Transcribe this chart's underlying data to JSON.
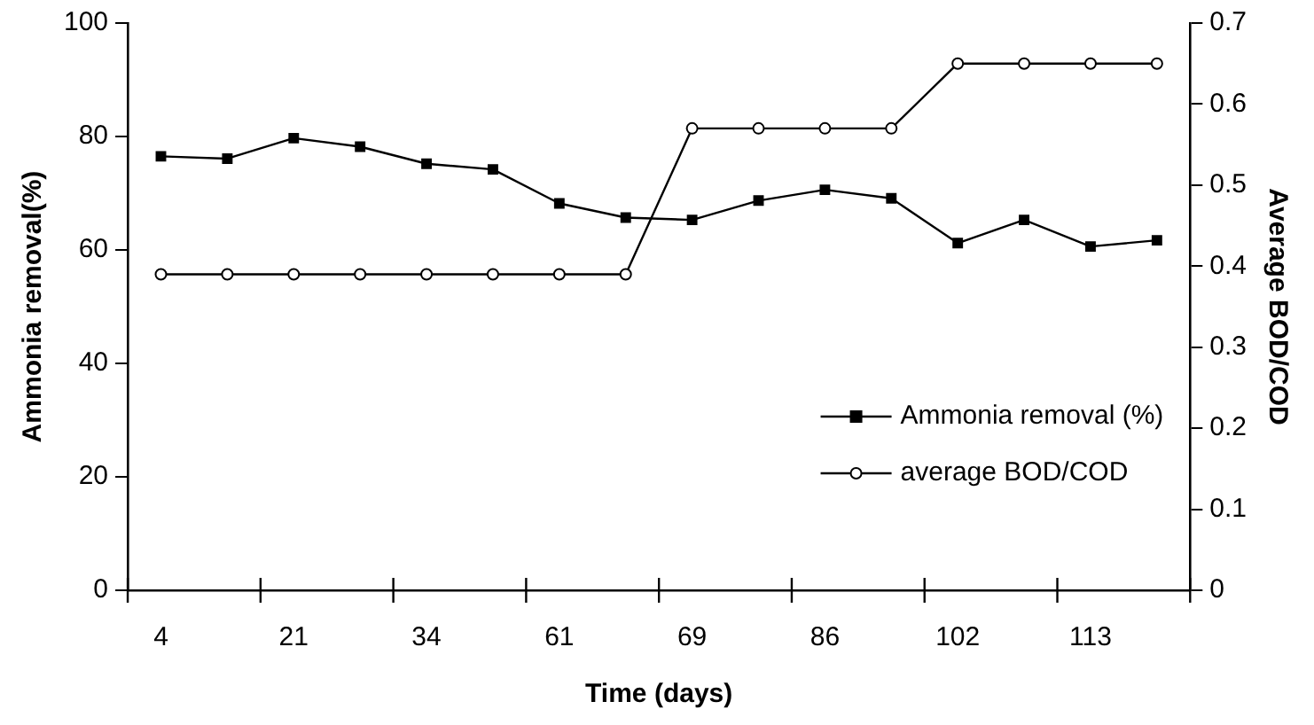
{
  "chart_data": {
    "type": "line",
    "xlabel": "Time (days)",
    "ylabel": "Ammonia removal(%)",
    "y2label": "Average BOD/COD",
    "categories": [
      "4",
      null,
      "21",
      null,
      "34",
      null,
      "61",
      null,
      "69",
      null,
      "86",
      null,
      "102",
      null,
      "113",
      null
    ],
    "series": [
      {
        "name": "Ammonia removal (%)",
        "color": "#000000",
        "marker": "square",
        "values": [
          76.5,
          76.1,
          79.7,
          78.2,
          75.2,
          74.2,
          68.2,
          65.7,
          65.3,
          68.7,
          70.6,
          69.1,
          61.2,
          65.3,
          60.6,
          61.7
        ]
      },
      {
        "name": "average BOD/COD",
        "color": "#000000",
        "marker": "circle",
        "axis": "y2",
        "values": [
          0.39,
          0.39,
          0.39,
          0.39,
          0.39,
          0.39,
          0.39,
          0.39,
          0.57,
          0.57,
          0.57,
          0.57,
          0.65,
          0.65,
          0.65,
          0.65
        ]
      }
    ],
    "ylim": [
      0,
      100
    ],
    "yticks": [
      0,
      20,
      40,
      60,
      80,
      100
    ],
    "y2lim": [
      0,
      0.7
    ],
    "y2ticks": [
      0,
      0.1,
      0.2,
      0.3,
      0.4,
      0.5,
      0.6,
      0.7
    ],
    "grid": false,
    "legend": "bottom right",
    "line_style": "solid"
  }
}
